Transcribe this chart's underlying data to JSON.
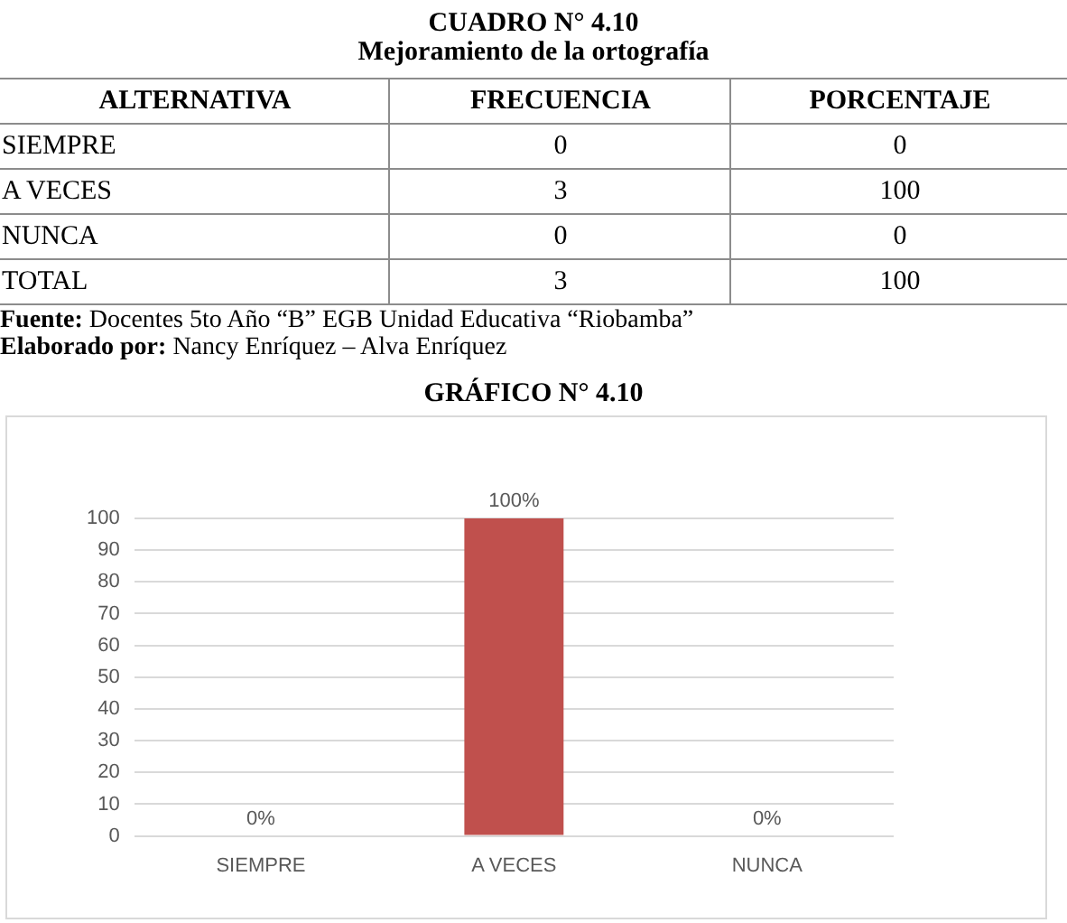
{
  "chart_data": [
    {
      "type": "other",
      "title": "CUADRO N° 4.10",
      "subtitle": "Mejoramiento de la ortografía",
      "xlabel": "ALTERNATIVA",
      "categories": [
        "SIEMPRE",
        "A VECES",
        "NUNCA",
        "TOTAL"
      ],
      "series": [
        {
          "name": "FRECUENCIA",
          "values": [
            0,
            3,
            0,
            3
          ]
        },
        {
          "name": "PORCENTAJE",
          "values": [
            0,
            100,
            0,
            100
          ]
        }
      ],
      "data_labels": true,
      "annotations": [
        "Fuente: Docentes 5to Año “B” EGB Unidad Educativa “Riobamba”",
        "Elaborado por: Nancy Enríquez – Alva Enríquez"
      ]
    },
    {
      "type": "bar",
      "title": "GRÁFICO N° 4.10",
      "categories": [
        "SIEMPRE",
        "A VECES",
        "NUNCA"
      ],
      "values": [
        0,
        100,
        0
      ],
      "color": "#c0504d",
      "ylim": [
        0,
        100
      ],
      "yticks": [
        0,
        10,
        20,
        30,
        40,
        50,
        60,
        70,
        80,
        90,
        100
      ],
      "grid": "y",
      "value_labels": [
        "0%",
        "100%",
        "0%"
      ]
    }
  ]
}
